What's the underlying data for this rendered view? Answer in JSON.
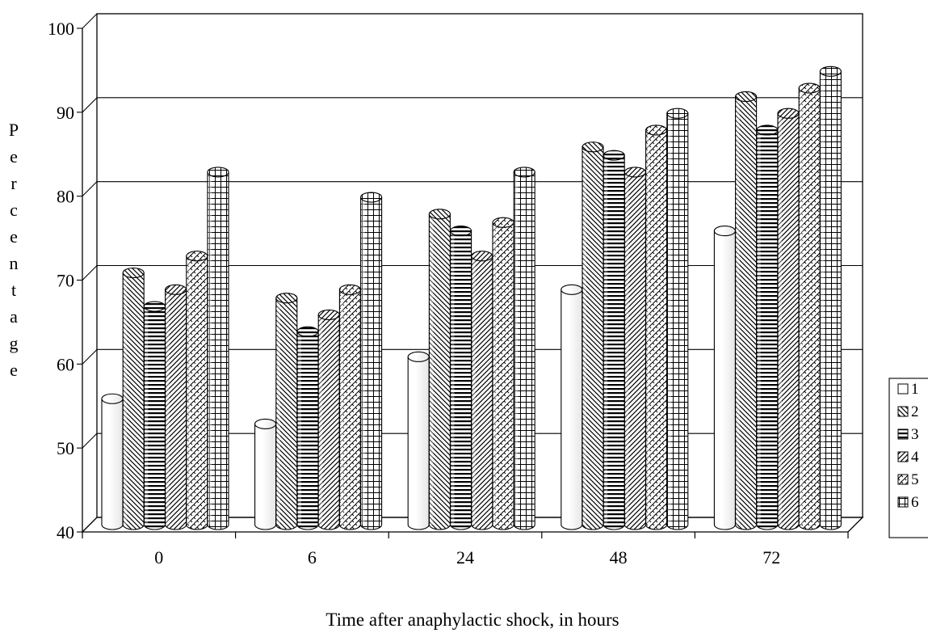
{
  "chart_data": {
    "type": "bar",
    "title": "",
    "xlabel": "Time after anaphylactic shock, in hours",
    "ylabel": "Percentage",
    "categories": [
      "0",
      "6",
      "24",
      "48",
      "72"
    ],
    "ylim": [
      40,
      100
    ],
    "yticks": [
      40,
      50,
      60,
      70,
      80,
      90,
      100
    ],
    "grid": true,
    "legend_position": "right",
    "series": [
      {
        "name": "1",
        "pattern": "plain",
        "values": [
          55,
          52,
          60,
          68,
          75
        ]
      },
      {
        "name": "2",
        "pattern": "diag-left",
        "values": [
          70,
          67,
          77,
          85,
          91
        ]
      },
      {
        "name": "3",
        "pattern": "horizontal",
        "values": [
          66,
          63,
          75,
          84,
          87
        ]
      },
      {
        "name": "4",
        "pattern": "diag-right",
        "values": [
          68,
          65,
          72,
          82,
          89
        ]
      },
      {
        "name": "5",
        "pattern": "wave",
        "values": [
          72,
          68,
          76,
          87,
          92
        ]
      },
      {
        "name": "6",
        "pattern": "grid",
        "values": [
          82,
          79,
          82,
          89,
          94
        ]
      }
    ]
  }
}
